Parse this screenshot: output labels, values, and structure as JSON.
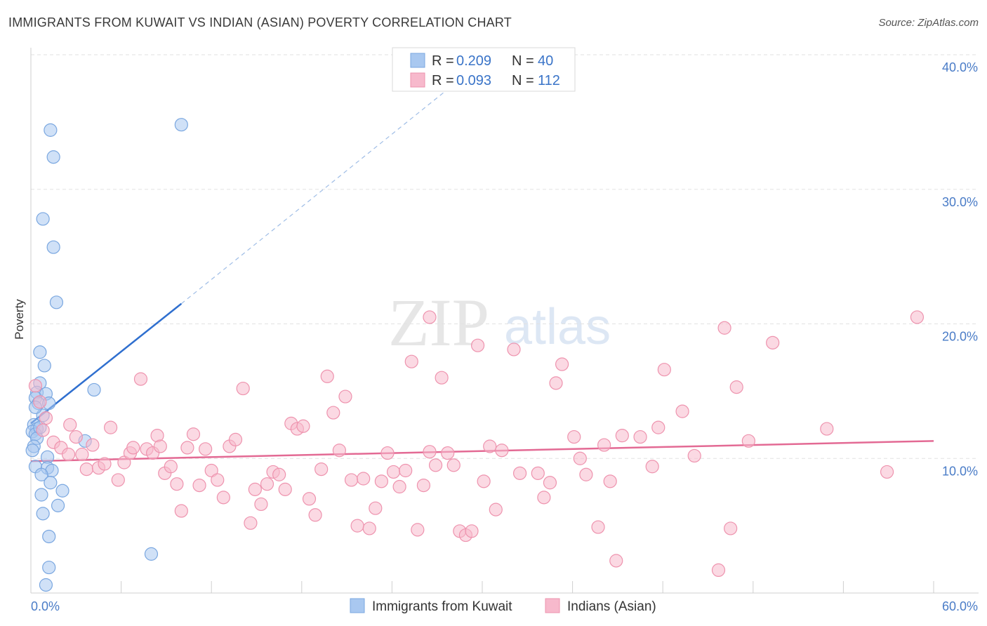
{
  "header": {
    "title": "IMMIGRANTS FROM KUWAIT VS INDIAN (ASIAN) POVERTY CORRELATION CHART",
    "source": "Source: ZipAtlas.com"
  },
  "watermark": {
    "zip": "ZIP",
    "atlas": "atlas"
  },
  "legend_box": {
    "rows": [
      {
        "r_label": "R = ",
        "r_value": "0.209",
        "n_label": "N = ",
        "n_value": "40",
        "color": "#a9c8f0"
      },
      {
        "r_label": "R = ",
        "r_value": "0.093",
        "n_label": "N = ",
        "n_value": "112",
        "color": "#f7b9cc"
      }
    ]
  },
  "chart_data": {
    "type": "scatter",
    "title": "IMMIGRANTS FROM KUWAIT VS INDIAN (ASIAN) POVERTY CORRELATION CHART",
    "xlabel": "",
    "ylabel": "Poverty",
    "xlim": [
      0,
      60
    ],
    "ylim": [
      0,
      40
    ],
    "x_tick_labels": [
      "0.0%",
      "60.0%"
    ],
    "y_ticks": [
      10,
      20,
      30,
      40
    ],
    "y_tick_labels": [
      "10.0%",
      "20.0%",
      "30.0%",
      "40.0%"
    ],
    "grid": true,
    "legend_placement": "bottom",
    "series": [
      {
        "name": "Immigrants from Kuwait",
        "color": "#a9c8f0",
        "stroke": "#7aa7e0",
        "r": "0.209",
        "n": "40",
        "trend": {
          "x": [
            0,
            10
          ],
          "y": [
            12.6,
            21.5
          ],
          "color": "#2f6fcf"
        },
        "trend_extension": {
          "x": [
            10,
            30
          ],
          "y": [
            21.5,
            39.5
          ]
        },
        "points": [
          [
            1.3,
            34.4
          ],
          [
            1.5,
            32.4
          ],
          [
            10.0,
            34.8
          ],
          [
            0.8,
            27.8
          ],
          [
            1.5,
            25.7
          ],
          [
            1.7,
            21.6
          ],
          [
            0.6,
            17.9
          ],
          [
            0.9,
            16.9
          ],
          [
            0.6,
            15.6
          ],
          [
            0.4,
            14.9
          ],
          [
            1.0,
            14.8
          ],
          [
            4.2,
            15.1
          ],
          [
            0.3,
            14.5
          ],
          [
            0.5,
            14.1
          ],
          [
            1.2,
            14.1
          ],
          [
            0.8,
            13.2
          ],
          [
            0.2,
            12.5
          ],
          [
            0.4,
            12.2
          ],
          [
            0.1,
            12.0
          ],
          [
            0.3,
            11.8
          ],
          [
            0.4,
            11.5
          ],
          [
            0.2,
            10.9
          ],
          [
            0.1,
            10.6
          ],
          [
            3.6,
            11.3
          ],
          [
            1.1,
            10.1
          ],
          [
            0.3,
            9.4
          ],
          [
            1.1,
            9.3
          ],
          [
            1.4,
            9.1
          ],
          [
            0.7,
            8.8
          ],
          [
            1.3,
            8.2
          ],
          [
            2.1,
            7.6
          ],
          [
            0.7,
            7.3
          ],
          [
            1.8,
            6.5
          ],
          [
            0.8,
            5.9
          ],
          [
            1.2,
            4.2
          ],
          [
            8.0,
            2.9
          ],
          [
            1.2,
            1.9
          ],
          [
            1.0,
            0.6
          ],
          [
            0.3,
            13.8
          ],
          [
            0.6,
            12.3
          ]
        ]
      },
      {
        "name": "Indians (Asian)",
        "color": "#f7b9cc",
        "stroke": "#ee93ae",
        "r": "0.093",
        "n": "112",
        "trend": {
          "x": [
            0,
            60
          ],
          "y": [
            9.8,
            11.3
          ],
          "color": "#e36a94"
        },
        "points": [
          [
            0.3,
            15.4
          ],
          [
            0.6,
            14.2
          ],
          [
            1.0,
            13.0
          ],
          [
            0.8,
            12.1
          ],
          [
            1.5,
            11.2
          ],
          [
            2.0,
            10.8
          ],
          [
            2.5,
            10.3
          ],
          [
            2.6,
            12.5
          ],
          [
            3.0,
            11.6
          ],
          [
            3.4,
            10.3
          ],
          [
            3.7,
            9.2
          ],
          [
            4.1,
            11.0
          ],
          [
            4.5,
            9.3
          ],
          [
            4.9,
            9.6
          ],
          [
            5.3,
            12.3
          ],
          [
            5.8,
            8.4
          ],
          [
            6.2,
            9.7
          ],
          [
            6.6,
            10.4
          ],
          [
            6.8,
            10.8
          ],
          [
            7.3,
            15.9
          ],
          [
            7.7,
            10.7
          ],
          [
            8.1,
            10.4
          ],
          [
            8.4,
            11.7
          ],
          [
            8.6,
            10.9
          ],
          [
            8.9,
            8.9
          ],
          [
            9.3,
            9.4
          ],
          [
            9.7,
            8.1
          ],
          [
            10.0,
            6.1
          ],
          [
            10.4,
            10.8
          ],
          [
            10.8,
            11.8
          ],
          [
            11.2,
            8.0
          ],
          [
            11.6,
            10.7
          ],
          [
            12.0,
            9.1
          ],
          [
            12.4,
            8.4
          ],
          [
            12.8,
            7.1
          ],
          [
            13.2,
            10.9
          ],
          [
            13.6,
            11.4
          ],
          [
            14.1,
            15.2
          ],
          [
            14.6,
            5.2
          ],
          [
            14.9,
            7.7
          ],
          [
            15.3,
            6.6
          ],
          [
            15.7,
            8.1
          ],
          [
            16.1,
            9.0
          ],
          [
            16.5,
            8.8
          ],
          [
            16.9,
            7.7
          ],
          [
            17.3,
            12.6
          ],
          [
            17.7,
            12.2
          ],
          [
            18.1,
            12.4
          ],
          [
            18.5,
            7.0
          ],
          [
            18.9,
            5.8
          ],
          [
            19.3,
            9.2
          ],
          [
            19.7,
            16.1
          ],
          [
            20.1,
            13.4
          ],
          [
            20.5,
            10.6
          ],
          [
            20.9,
            14.6
          ],
          [
            21.3,
            8.4
          ],
          [
            21.7,
            5.0
          ],
          [
            22.1,
            8.5
          ],
          [
            22.5,
            4.8
          ],
          [
            22.9,
            6.3
          ],
          [
            23.3,
            8.3
          ],
          [
            23.7,
            10.4
          ],
          [
            24.1,
            9.0
          ],
          [
            24.5,
            7.9
          ],
          [
            24.9,
            9.1
          ],
          [
            25.3,
            17.2
          ],
          [
            25.7,
            4.7
          ],
          [
            26.1,
            8.0
          ],
          [
            26.5,
            10.5
          ],
          [
            26.9,
            9.5
          ],
          [
            27.3,
            16.0
          ],
          [
            27.7,
            10.4
          ],
          [
            28.1,
            9.5
          ],
          [
            28.5,
            4.6
          ],
          [
            28.9,
            4.3
          ],
          [
            29.3,
            4.6
          ],
          [
            29.7,
            18.4
          ],
          [
            30.1,
            8.3
          ],
          [
            30.5,
            10.9
          ],
          [
            30.9,
            6.2
          ],
          [
            31.3,
            10.6
          ],
          [
            32.1,
            18.1
          ],
          [
            32.5,
            8.9
          ],
          [
            33.7,
            8.9
          ],
          [
            34.1,
            7.1
          ],
          [
            34.5,
            8.2
          ],
          [
            34.9,
            15.6
          ],
          [
            35.3,
            17.0
          ],
          [
            36.1,
            11.6
          ],
          [
            36.5,
            10.0
          ],
          [
            36.9,
            8.8
          ],
          [
            37.7,
            4.9
          ],
          [
            38.1,
            11.0
          ],
          [
            38.5,
            8.3
          ],
          [
            38.9,
            2.4
          ],
          [
            39.3,
            11.7
          ],
          [
            40.5,
            11.6
          ],
          [
            41.3,
            9.4
          ],
          [
            41.7,
            12.3
          ],
          [
            42.1,
            16.6
          ],
          [
            43.3,
            13.5
          ],
          [
            45.7,
            1.7
          ],
          [
            46.1,
            19.7
          ],
          [
            46.5,
            4.8
          ],
          [
            46.9,
            15.3
          ],
          [
            47.7,
            11.3
          ],
          [
            49.3,
            18.6
          ],
          [
            52.9,
            12.2
          ],
          [
            56.9,
            9.0
          ],
          [
            58.9,
            20.5
          ],
          [
            26.5,
            20.5
          ],
          [
            44.1,
            10.2
          ]
        ]
      }
    ]
  }
}
